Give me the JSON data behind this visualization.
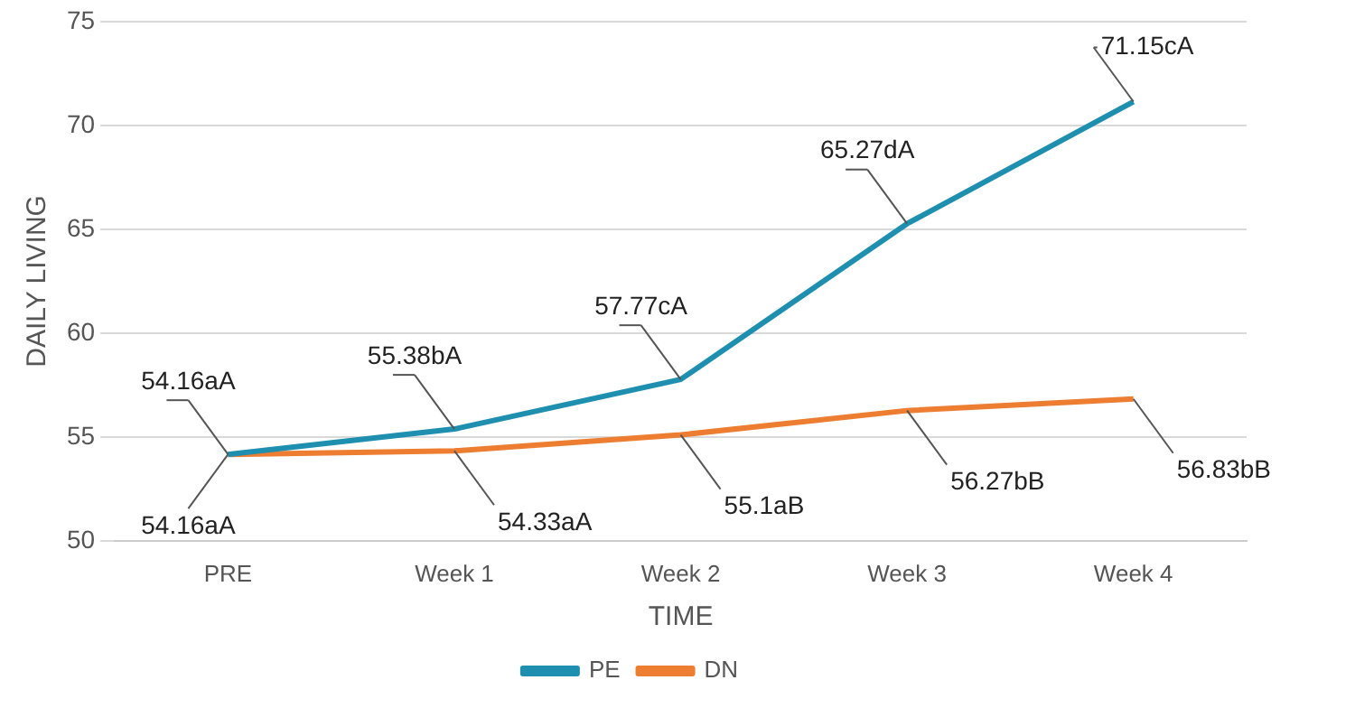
{
  "chart_data": {
    "type": "line",
    "xlabel": "TIME",
    "ylabel": "DAILY LIVING",
    "categories": [
      "PRE",
      "Week 1",
      "Week 2",
      "Week 3",
      "Week 4"
    ],
    "series": [
      {
        "name": "PE",
        "color": "#1f8fb0",
        "values": [
          54.16,
          55.38,
          57.77,
          65.27,
          71.15
        ],
        "value_labels": [
          "54.16aA",
          "55.38bA",
          "57.77cA",
          "65.27dA",
          "71.15cA"
        ]
      },
      {
        "name": "DN",
        "color": "#ed7d31",
        "values": [
          54.16,
          54.33,
          55.1,
          56.27,
          56.83
        ],
        "value_labels": [
          "54.16aA",
          "54.33aA",
          "55.1aB",
          "56.27bB",
          "56.83bB"
        ]
      }
    ],
    "ylim": [
      50,
      75
    ],
    "yticks": [
      50,
      55,
      60,
      65,
      70,
      75
    ],
    "grid": "y",
    "legend": "bottom",
    "marker": "none",
    "line_style": "solid"
  }
}
